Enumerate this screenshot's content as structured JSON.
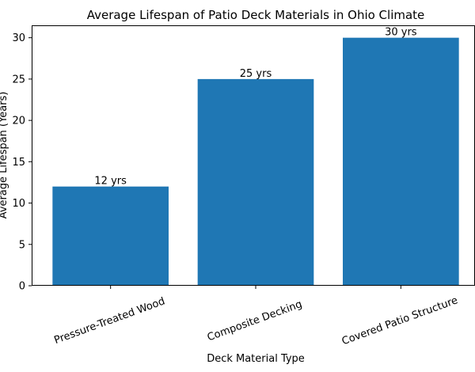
{
  "chart_data": {
    "type": "bar",
    "title": "Average Lifespan of Patio Deck Materials in Ohio Climate",
    "xlabel": "Deck Material Type",
    "ylabel": "Average Lifespan (Years)",
    "categories": [
      "Pressure-Treated Wood",
      "Composite Decking",
      "Covered Patio Structure"
    ],
    "values": [
      12,
      25,
      30
    ],
    "data_labels": [
      "12 yrs",
      "25 yrs",
      "30 yrs"
    ],
    "ylim": [
      0,
      31.5
    ],
    "yticks": [
      0,
      5,
      10,
      15,
      20,
      25,
      30
    ],
    "bar_color": "#1f77b4",
    "grid": false,
    "legend": "none"
  }
}
